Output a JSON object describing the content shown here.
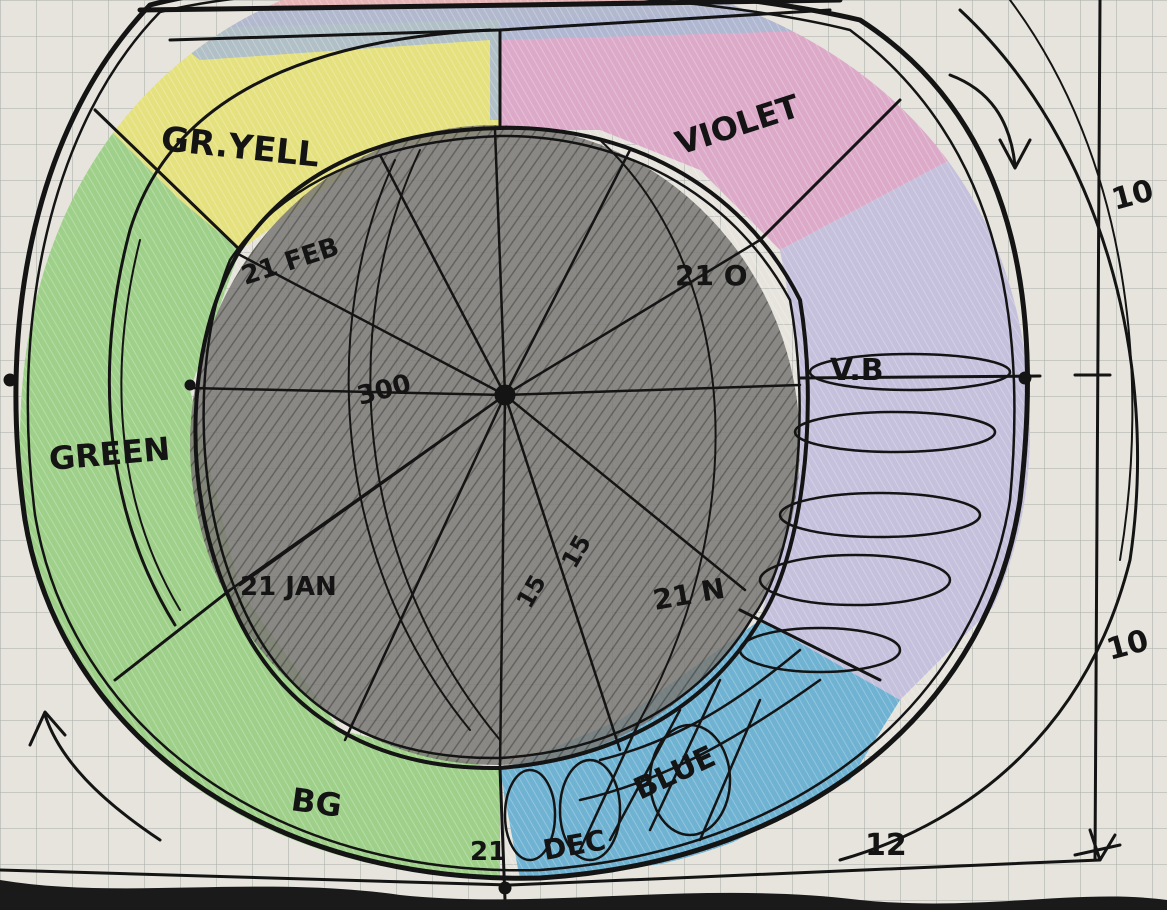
{
  "sketch": {
    "segments": {
      "gr_yell": "GR.YELL",
      "violet": "VIOLET",
      "green": "GREEN",
      "v_b": "V.B",
      "bg": "BG",
      "blue": "BLUE",
      "dec": "DEC"
    },
    "center_labels": {
      "feb": "21 FEB",
      "oct": "21 O",
      "jan": "21 JAN",
      "nov": "21 N",
      "deg_300": "300",
      "deg_15a": "15",
      "deg_15b": "15",
      "dec_num": "21"
    },
    "dimensions": {
      "right_top": "10",
      "right_bottom": "10",
      "bottom": "12"
    },
    "colors": {
      "paper": "#e6e4dc",
      "grid": "#a9aca8",
      "ink": "#141414",
      "graphite": "#6e6c68",
      "yellow": "#e5e17f",
      "pink": "#dcaac8",
      "lavender": "#c5c0dc",
      "green": "#9fd08a",
      "blue": "#6fb2d2",
      "slate_blue": "#a8bad2"
    }
  }
}
